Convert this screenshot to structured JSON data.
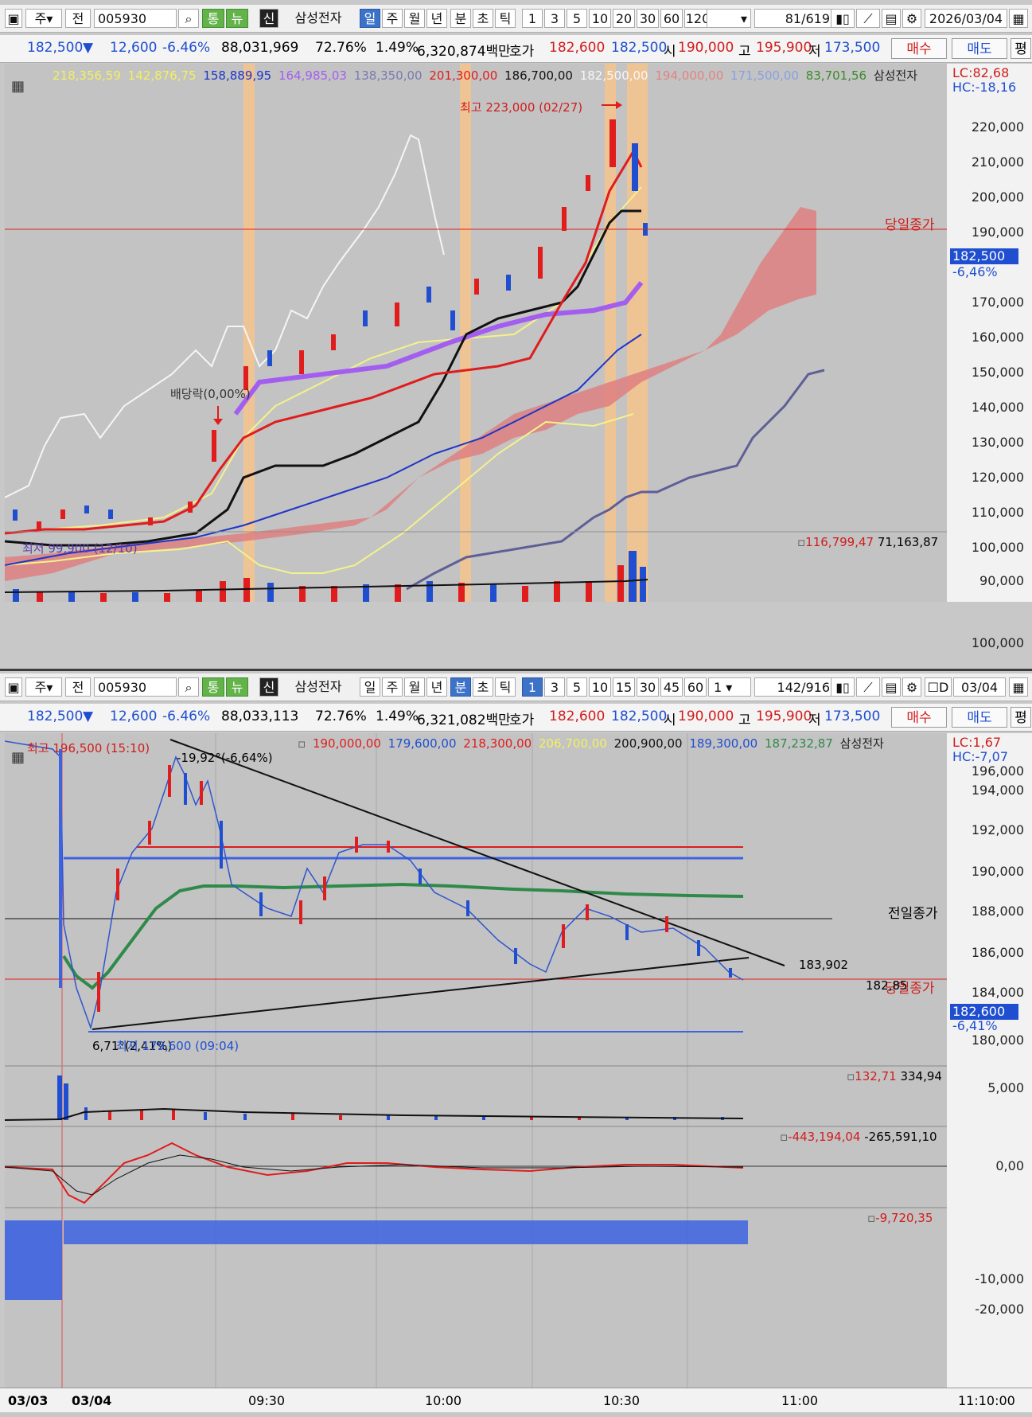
{
  "top_toolbar": {
    "prefix": "주",
    "label_prev": "전",
    "code": "005930",
    "btn_tong": "통",
    "btn_nyu": "뉴",
    "btn_sin": "신",
    "stock_name": "삼성전자",
    "periods": [
      "일",
      "주",
      "월",
      "년",
      "분",
      "초",
      "틱"
    ],
    "active_period": "일",
    "numbers": [
      "1",
      "3",
      "5",
      "10",
      "20",
      "30",
      "60",
      "120"
    ],
    "count": "81",
    "total": "/619",
    "date": "2026/03/04"
  },
  "top_quote": {
    "price": "182,500",
    "arrow": "▼",
    "change": "12,600",
    "pct": "-6.46%",
    "volume": "88,031,969",
    "ratio": "72.76%",
    "turnover": "1.49%",
    "amount": "6,320,874백만",
    "hoga_label": "호가",
    "ask": "182,600",
    "bid": "182,500",
    "open_label": "시",
    "open": "190,000",
    "high_label": "고",
    "high": "195,900",
    "low_label": "저",
    "low": "173,500",
    "buy": "매수",
    "sell": "매도",
    "last": "평"
  },
  "top_chart": {
    "legend": [
      "218,356,59",
      "142,876,75",
      "158,889,95",
      "164,985,03",
      "138,350,00",
      "201,300,00",
      "186,700,00",
      "182,500,00",
      "194,000,00",
      "171,500,00",
      "83,701,56"
    ],
    "legend_colors": [
      "#f2f060",
      "#f2f060",
      "#1f35c8",
      "#a35ef0",
      "#7a7ab0",
      "#e01c1c",
      "#111111",
      "#f7f7f7",
      "#e08484",
      "#88a0e0",
      "#3a8a2a"
    ],
    "name": "삼성전자",
    "lc": "LC:82,68",
    "hc": "HC:-18,16",
    "high_note": "최고 223,000 (02/27)",
    "low_note": "최저 99,900 (12/10)",
    "dividend_note": "배당락(0,00%)",
    "close_label": "당일종가",
    "price_tag": "182,500",
    "pct_tag": "-6,46%",
    "y_ticks": [
      "220,000",
      "210,000",
      "200,000",
      "190,000",
      "170,000",
      "160,000",
      "150,000",
      "140,000",
      "130,000",
      "120,000",
      "110,000",
      "100,000",
      "90,000"
    ],
    "vol_legend_a": "116,799,47",
    "vol_legend_b": "71,163,87",
    "vol_tick": "100,000"
  },
  "bottom_toolbar": {
    "prefix": "주",
    "label_prev": "전",
    "code": "005930",
    "btn_tong": "통",
    "btn_nyu": "뉴",
    "btn_sin": "신",
    "stock_name": "삼성전자",
    "periods": [
      "일",
      "주",
      "월",
      "년",
      "분",
      "초",
      "틱"
    ],
    "active_period": "분",
    "numbers": [
      "1",
      "3",
      "5",
      "10",
      "15",
      "30",
      "45",
      "60"
    ],
    "interval": "1",
    "count": "142",
    "total": "/916",
    "d_label": "D",
    "date": "03/04"
  },
  "bottom_quote": {
    "price": "182,500",
    "arrow": "▼",
    "change": "12,600",
    "pct": "-6.46%",
    "volume": "88,033,113",
    "ratio": "72.76%",
    "turnover": "1.49%",
    "amount": "6,321,082백만",
    "hoga_label": "호가",
    "ask": "182,600",
    "bid": "182,500",
    "open_label": "시",
    "open": "190,000",
    "high_label": "고",
    "high": "195,900",
    "low_label": "저",
    "low": "173,500",
    "buy": "매수",
    "sell": "매도",
    "last": "평"
  },
  "bottom_chart": {
    "legend": [
      "190,000,00",
      "179,600,00",
      "218,300,00",
      "206,700,00",
      "200,900,00",
      "189,300,00",
      "187,232,87"
    ],
    "legend_colors": [
      "#e01c1c",
      "#1f4fd0",
      "#e01c1c",
      "#f2f060",
      "#111111",
      "#1f4fd0",
      "#2f8a4a"
    ],
    "name": "삼성전자",
    "lc": "LC:1,67",
    "hc": "HC:-7,07",
    "high_note": "최고 196,500 (15:10)",
    "low_note": "최저 179,600 (09:04)",
    "angle_top": "-19,92°(-6,64%)",
    "angle_bottom": "6,71°(2,41%)",
    "prev_close_label": "전일종가",
    "today_close_label": "당일종가",
    "right_val_a": "183,902",
    "right_val_b": "182,85",
    "price_tag": "182,600",
    "pct_tag": "-6,41%",
    "y_ticks": [
      "196,000",
      "194,000",
      "192,000",
      "190,000",
      "188,000",
      "186,000",
      "184,000",
      "180,000"
    ],
    "vol_legend_a": "132,71",
    "vol_legend_b": "334,94",
    "vol_tick": "5,000",
    "osc_legend_a": "-443,194,04",
    "osc_legend_b": "-265,591,10",
    "osc_tick": "0,00",
    "hist_legend": "-9,720,35",
    "hist_ticks": [
      "-10,000",
      "-20,000"
    ],
    "time_labels": [
      "03/03",
      "03/04",
      "09:30",
      "10:00",
      "10:30",
      "11:00"
    ],
    "time_right": "11:10:00"
  }
}
